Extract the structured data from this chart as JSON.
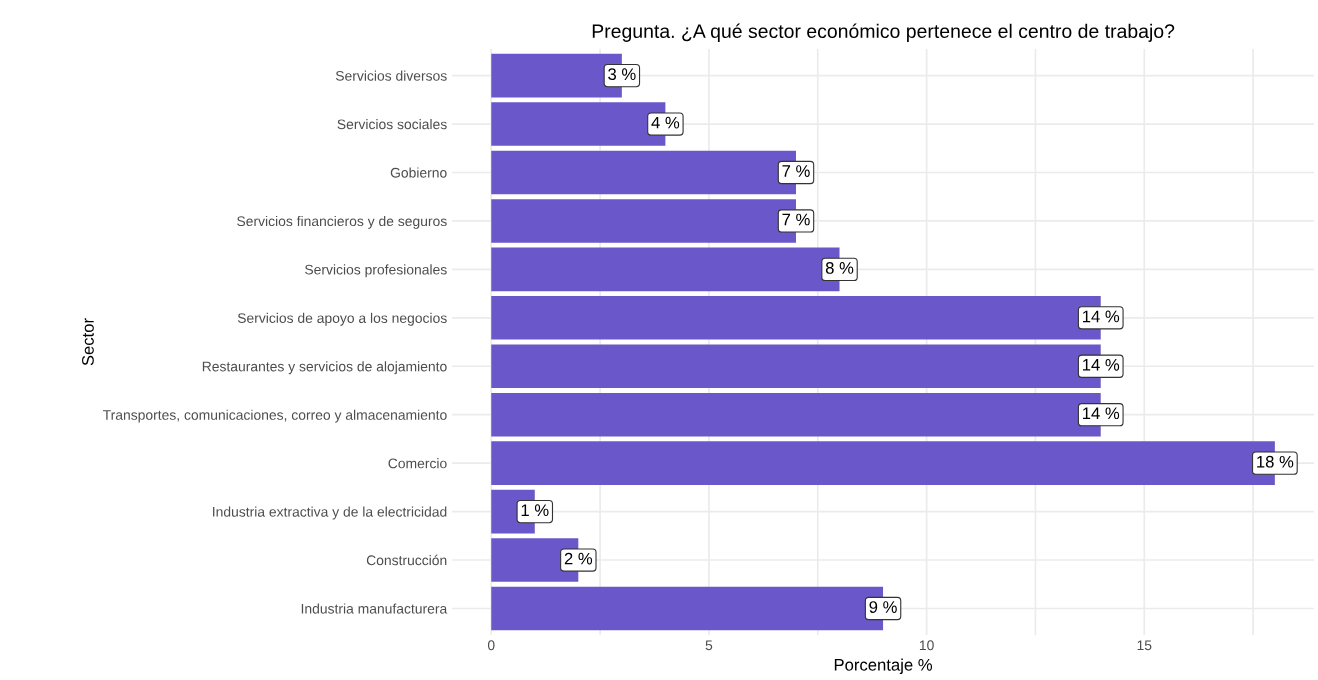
{
  "chart_data": {
    "type": "bar",
    "orientation": "horizontal",
    "title": "Pregunta. ¿A qué sector económico pertenece el centro de trabajo?",
    "xlabel": "Porcentaje %",
    "ylabel": "Sector",
    "categories": [
      "Servicios diversos",
      "Servicios sociales",
      "Gobierno",
      "Servicios financieros y de seguros",
      "Servicios profesionales",
      "Servicios de apoyo a los negocios",
      "Restaurantes y servicios de alojamiento",
      "Transportes, comunicaciones, correo y almacenamiento",
      "Comercio",
      "Industria extractiva y de la electricidad",
      "Construcción",
      "Industria manufacturera"
    ],
    "values": [
      3,
      4,
      7,
      7,
      8,
      14,
      14,
      14,
      18,
      1,
      2,
      9
    ],
    "value_labels": [
      "3 %",
      "4 %",
      "7 %",
      "7 %",
      "8 %",
      "14 %",
      "14 %",
      "14 %",
      "18 %",
      "1 %",
      "2 %",
      "9 %"
    ],
    "color": "#6a57c9",
    "xlim": [
      -0.9,
      18.9
    ],
    "xticks": [
      0,
      {
        "value": 2.5,
        "label": null
      },
      5,
      {
        "value": 7.5,
        "label": null
      },
      10,
      {
        "value": 12.5,
        "label": null
      },
      15,
      {
        "value": 17.5,
        "label": null
      }
    ],
    "grid": true
  }
}
